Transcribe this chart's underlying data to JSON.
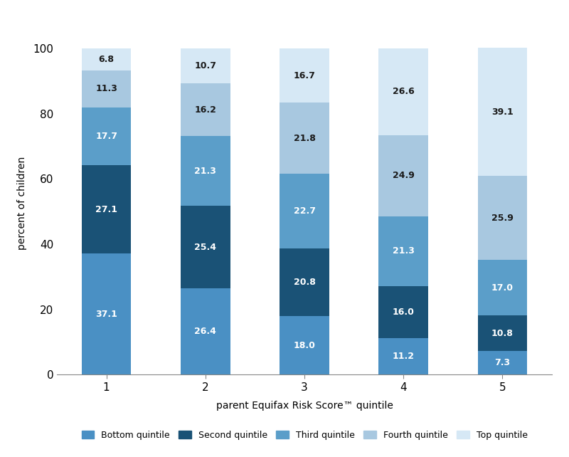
{
  "categories": [
    "1",
    "2",
    "3",
    "4",
    "5"
  ],
  "series": {
    "Bottom quintile": [
      37.1,
      26.4,
      18.0,
      11.2,
      7.3
    ],
    "Second quintile": [
      27.1,
      25.4,
      20.8,
      16.0,
      10.8
    ],
    "Third quintile": [
      17.7,
      21.3,
      22.7,
      21.3,
      17.0
    ],
    "Fourth quintile": [
      11.3,
      16.2,
      21.8,
      24.9,
      25.9
    ],
    "Top quintile": [
      6.8,
      10.7,
      16.7,
      26.6,
      39.1
    ]
  },
  "colors": {
    "Bottom quintile": "#4a90c4",
    "Second quintile": "#1a5276",
    "Third quintile": "#5b9ec9",
    "Fourth quintile": "#a8c8e0",
    "Top quintile": "#d6e8f5"
  },
  "text_colors": {
    "Bottom quintile": "white",
    "Second quintile": "white",
    "Third quintile": "white",
    "Fourth quintile": "#1a1a1a",
    "Top quintile": "#1a1a1a"
  },
  "ylabel": "percent of children",
  "xlabel": "parent Equifax Risk Score™ quintile",
  "ylim": [
    0,
    105
  ],
  "yticks": [
    0,
    20,
    40,
    60,
    80,
    100
  ],
  "bar_width": 0.5,
  "figsize": [
    8.0,
    6.42
  ],
  "dpi": 100
}
